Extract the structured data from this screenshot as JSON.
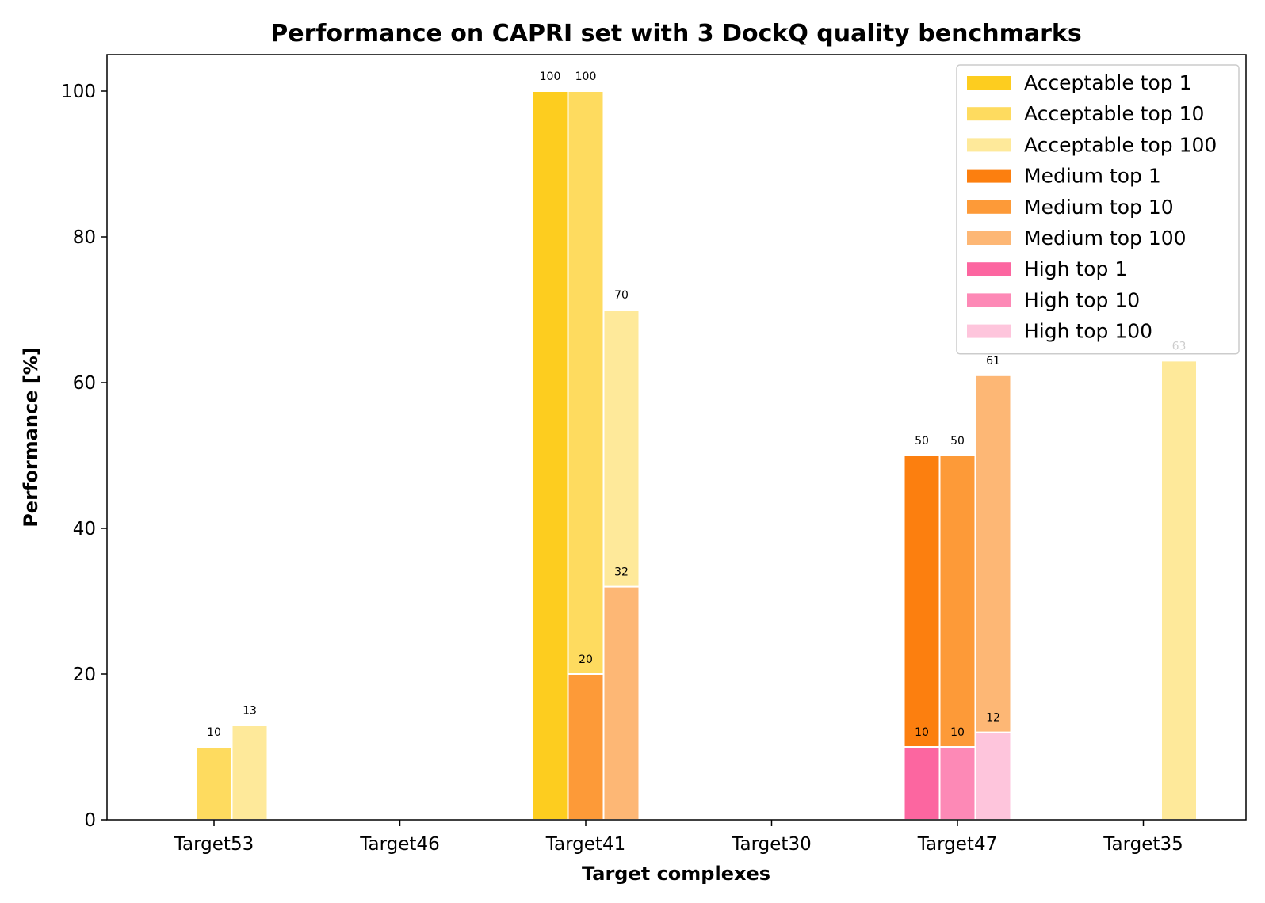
{
  "chart_data": {
    "type": "bar",
    "title": "Performance on CAPRI set with 3 DockQ quality benchmarks",
    "xlabel": "Target complexes",
    "ylabel": "Performance [%]",
    "ylim": [
      0,
      105
    ],
    "yticks": [
      0,
      20,
      40,
      60,
      80,
      100
    ],
    "categories": [
      "Target53",
      "Target46",
      "Target41",
      "Target30",
      "Target47",
      "Target35"
    ],
    "groups": [
      "top 1",
      "top 10",
      "top 100"
    ],
    "legend_position": "top-right",
    "grid": false,
    "series": [
      {
        "name": "Acceptable top 1",
        "group": 0,
        "color": "#FDCD1F",
        "values": [
          0,
          0,
          100,
          0,
          0,
          0
        ],
        "label_color": "#000000"
      },
      {
        "name": "Acceptable top 10",
        "group": 1,
        "color": "#FEDB5F",
        "values": [
          10,
          0,
          100,
          0,
          0,
          0
        ],
        "label_color": "#000000"
      },
      {
        "name": "Acceptable top 100",
        "group": 2,
        "color": "#FEE99A",
        "values": [
          13,
          0,
          70,
          0,
          0,
          63
        ],
        "label_color": "#000000"
      },
      {
        "name": "Medium top 1",
        "group": 0,
        "color": "#FC7F0F",
        "values": [
          0,
          0,
          0,
          0,
          50,
          0
        ],
        "label_color": "#000000"
      },
      {
        "name": "Medium top 10",
        "group": 1,
        "color": "#FD9A38",
        "values": [
          0,
          0,
          20,
          0,
          50,
          0
        ],
        "label_color": "#000000"
      },
      {
        "name": "Medium top 100",
        "group": 2,
        "color": "#FDB775",
        "values": [
          0,
          0,
          32,
          0,
          61,
          0
        ],
        "label_color": "#000000"
      },
      {
        "name": "High top 1",
        "group": 0,
        "color": "#FC66A0",
        "values": [
          0,
          0,
          0,
          0,
          10,
          0
        ],
        "label_color": "#000000"
      },
      {
        "name": "High top 10",
        "group": 1,
        "color": "#FD89B6",
        "values": [
          0,
          0,
          0,
          0,
          10,
          0
        ],
        "label_color": "#000000"
      },
      {
        "name": "High top 100",
        "group": 2,
        "color": "#FEC5DC",
        "values": [
          0,
          0,
          0,
          0,
          12,
          0
        ],
        "label_color": "#000000"
      }
    ]
  }
}
